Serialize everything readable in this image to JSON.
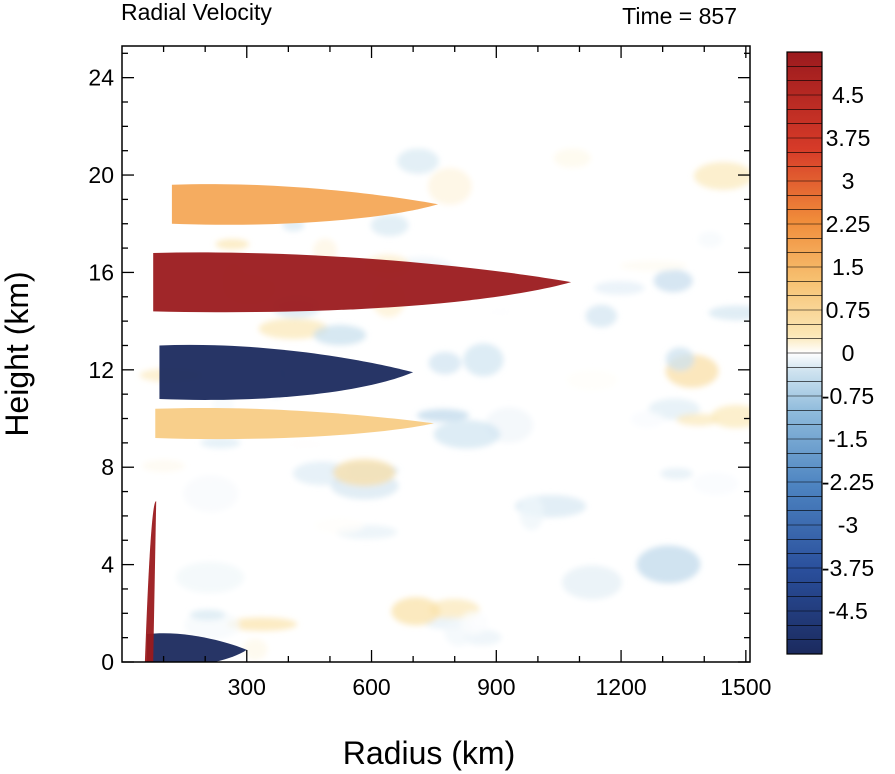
{
  "chart_data": {
    "type": "heatmap",
    "title": "Radial Velocity",
    "subtitle": "Time = 857",
    "xlabel": "Radius (km)",
    "ylabel": "Height (km)",
    "xlim": [
      0,
      1510
    ],
    "ylim": [
      0,
      25.3
    ],
    "x_ticks": [
      300,
      600,
      900,
      1200,
      1500
    ],
    "y_ticks": [
      0,
      4,
      8,
      12,
      16,
      20,
      24
    ],
    "colorbar": {
      "min": -5.25,
      "max": 5.25,
      "step": 0.25,
      "tick_values": [
        4.5,
        3.75,
        3,
        2.25,
        1.5,
        0.75,
        0,
        -0.75,
        -1.5,
        -2.25,
        -3,
        -3.75,
        -4.5
      ],
      "tick_labels": [
        "4.5",
        "3.75",
        "3",
        "2.25",
        "1.5",
        "0.75",
        "0",
        "-0.75",
        "-1.5",
        "-2.25",
        "-3",
        "-3.75",
        "-4.5"
      ],
      "palette": [
        "#1b2a5e",
        "#2a4f9c",
        "#4d84c1",
        "#8dbadb",
        "#cfe3f0",
        "#ffffff",
        "#fbe7b6",
        "#f7c171",
        "#f08c3a",
        "#d63a28",
        "#9b1a1e"
      ]
    },
    "features": [
      {
        "kind": "outflow-jet",
        "r": [
          75,
          1080
        ],
        "z_center": 15.6,
        "thickness_km": 2.4,
        "value": 5.25
      },
      {
        "kind": "upper-return-flow",
        "r": [
          120,
          760
        ],
        "z_center": 18.8,
        "thickness_km": 1.6,
        "value": 2.6
      },
      {
        "kind": "inflow-layer-aloft",
        "r": [
          90,
          700
        ],
        "z_center": 11.9,
        "thickness_km": 2.2,
        "value": -5.25
      },
      {
        "kind": "outflow-layer-mid",
        "r": [
          80,
          750
        ],
        "z_center": 9.8,
        "thickness_km": 1.2,
        "value": 1.8
      },
      {
        "kind": "boundary-layer-inflow",
        "r": [
          60,
          300
        ],
        "z_center": 0.5,
        "thickness_km": 1.3,
        "value": -5.25
      },
      {
        "kind": "eyewall-outflow",
        "r": [
          55,
          75
        ],
        "z_center": 3.3,
        "thickness_km": 6.6,
        "value": 5.25
      }
    ]
  }
}
